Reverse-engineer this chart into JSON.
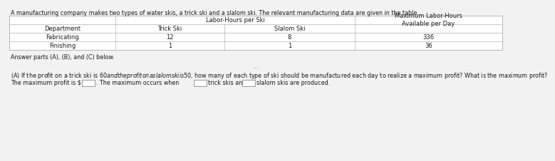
{
  "intro_text": "A manufacturing company makes two types of water skis, a trick ski and a slalom ski. The relevant manufacturing data are given in the table.",
  "col_header_center": "Labor-Hours per Ski",
  "col_header_right": "Maximum Labor-Hours\nAvailable per Day",
  "row_header": "Department",
  "col1": "Trick Ski",
  "col2": "Slalom Ski",
  "rows": [
    [
      "Fabricating",
      "12",
      "8",
      "336"
    ],
    [
      "Finishing",
      "1",
      "1",
      "36"
    ]
  ],
  "answer_parts_text": "Answer parts (A), (B), and (C) below.",
  "ellipsis": "...",
  "part_a_text": "(A) If the profit on a trick ski is $60 and the profit on a slalom ski is $50, how many of each type of ski should be manufactured each day to realize a maximum profit? What is the maximum profit?",
  "bottom_text_1": "The maximum profit is $",
  "bottom_text_2": ". The maximum occurs when",
  "bottom_text_3": "trick skis and",
  "bottom_text_4": "slalom skis are produced.",
  "bg_color": "#f2f2f2",
  "table_bg": "#ffffff",
  "border_color": "#b0b0b0",
  "text_color": "#1a1a1a",
  "font_size_intro": 5.8,
  "font_size_table": 6.0,
  "font_size_body": 5.8
}
